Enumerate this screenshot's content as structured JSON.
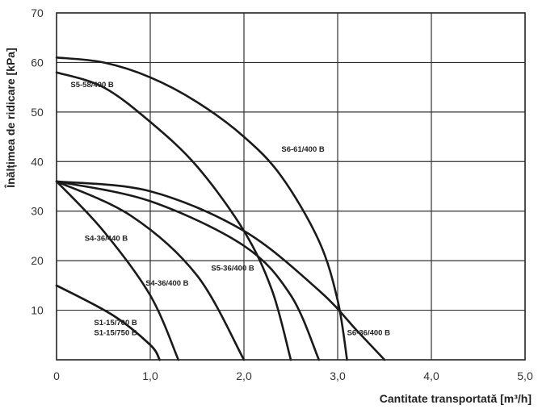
{
  "chart_data": {
    "type": "line",
    "title": "",
    "xlabel": "Cantitate transportată [m³/h]",
    "ylabel": "Înălțimea de ridicare [kPa]",
    "xlim": [
      0,
      5.0
    ],
    "ylim": [
      0,
      70
    ],
    "x_ticks": [
      "0",
      "1,0",
      "2,0",
      "3,0",
      "4,0",
      "5,0"
    ],
    "y_ticks": [
      "10",
      "20",
      "30",
      "40",
      "50",
      "60",
      "70"
    ],
    "grid": true,
    "series": [
      {
        "name": "S6-61/400 B",
        "points": [
          [
            0,
            61
          ],
          [
            0.5,
            60
          ],
          [
            1.0,
            57
          ],
          [
            1.5,
            52
          ],
          [
            2.0,
            45
          ],
          [
            2.4,
            37
          ],
          [
            2.8,
            24
          ],
          [
            3.0,
            12
          ],
          [
            3.1,
            0
          ]
        ]
      },
      {
        "name": "S5-58/400 B",
        "points": [
          [
            0,
            58
          ],
          [
            0.5,
            55
          ],
          [
            1.0,
            48
          ],
          [
            1.5,
            39
          ],
          [
            2.0,
            26
          ],
          [
            2.3,
            14
          ],
          [
            2.5,
            0
          ]
        ]
      },
      {
        "name": "S6-36/400 B",
        "points": [
          [
            0,
            36
          ],
          [
            1.0,
            34
          ],
          [
            2.0,
            26
          ],
          [
            2.8,
            14
          ],
          [
            3.2,
            6
          ],
          [
            3.5,
            0
          ]
        ]
      },
      {
        "name": "S5-36/400 B",
        "points": [
          [
            0,
            36
          ],
          [
            1.0,
            32
          ],
          [
            2.0,
            23
          ],
          [
            2.5,
            13
          ],
          [
            2.8,
            0
          ]
        ]
      },
      {
        "name": "S4-36/400 B",
        "points": [
          [
            0,
            36
          ],
          [
            0.8,
            29
          ],
          [
            1.5,
            17
          ],
          [
            2.0,
            0
          ]
        ]
      },
      {
        "name": "S4-36/440 B",
        "points": [
          [
            0,
            36
          ],
          [
            0.5,
            26
          ],
          [
            1.0,
            13
          ],
          [
            1.3,
            0
          ]
        ]
      },
      {
        "name": "S1-15/700 B",
        "points": [
          [
            0,
            15
          ],
          [
            0.6,
            9
          ],
          [
            1.0,
            3
          ],
          [
            1.1,
            0
          ]
        ]
      },
      {
        "name": "S1-15/750 B",
        "points": [
          [
            0,
            15
          ],
          [
            0.6,
            9
          ],
          [
            1.0,
            3
          ],
          [
            1.1,
            0
          ]
        ]
      }
    ],
    "labels": [
      {
        "text": "S6-61/400 B",
        "x": 2.4,
        "y": 42
      },
      {
        "text": "S5-58/400 B",
        "x": 0.15,
        "y": 55
      },
      {
        "text": "S6-36/400 B",
        "x": 3.1,
        "y": 5
      },
      {
        "text": "S5-36/400 B",
        "x": 1.65,
        "y": 18
      },
      {
        "text": "S4-36/400 B",
        "x": 0.95,
        "y": 15
      },
      {
        "text": "S4-36/440 B",
        "x": 0.3,
        "y": 24
      },
      {
        "text": "S1-15/700 B",
        "x": 0.4,
        "y": 7
      },
      {
        "text": "S1-15/750 B",
        "x": 0.4,
        "y": 5
      }
    ]
  }
}
